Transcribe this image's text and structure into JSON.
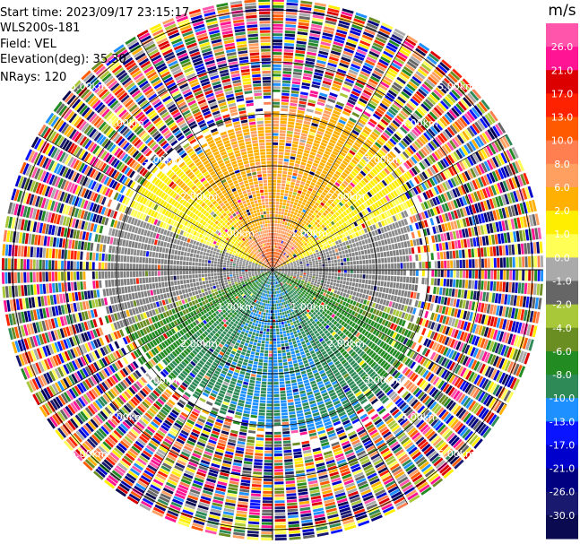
{
  "header": {
    "start_time": "Start time: 2023/09/17 23:15:17",
    "instrument": "WLS200s-181",
    "field": "Field: VEL",
    "elevation": "Elevation(deg): 35.30",
    "nrays": "NRays: 120"
  },
  "chart_data": {
    "type": "heatmap",
    "projection": "polar-ppi",
    "field": "VEL",
    "unit_label": "m/s",
    "nrays": 120,
    "elevation_deg": 35.3,
    "range_rings_km": [
      1.0,
      2.0,
      3.0,
      4.0,
      5.0
    ],
    "range_ring_labels": [
      "1.00km",
      "2.00km",
      "3.00km",
      "4.00km",
      "5.00km"
    ],
    "colorbar": {
      "tick_labels": [
        "26.0",
        "21.0",
        "17.0",
        "13.0",
        "10.0",
        "8.0",
        "6.0",
        "2.0",
        "1.0",
        "0.0",
        "-1.0",
        "-2.0",
        "-4.0",
        "-6.0",
        "-8.0",
        "-10.0",
        "-13.0",
        "-17.0",
        "-21.0",
        "-26.0",
        "-30.0"
      ],
      "colors": [
        "#ff55aa",
        "#ff1493",
        "#dd0000",
        "#ff2200",
        "#ff5a00",
        "#ff7f50",
        "#ffa060",
        "#ffb000",
        "#ffee00",
        "#ffff55",
        "#aaaaaa",
        "#666666",
        "#a8c83a",
        "#6b8e23",
        "#228b22",
        "#2e8b57",
        "#1e90ff",
        "#0a14ff",
        "#0000cc",
        "#000080",
        "#191970",
        "#0a0a50"
      ]
    },
    "pattern": {
      "core_range_km": 3.0,
      "north_sector": "positive velocities (yellow/orange, pink near center)",
      "south_sector": "negative velocities (green)",
      "east_west": "near zero (gray)",
      "outer_ring": "noise (random colors)"
    }
  }
}
